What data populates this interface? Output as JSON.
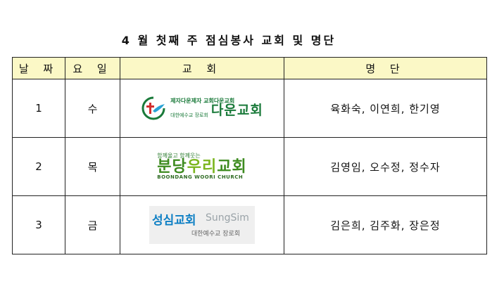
{
  "title": "4 월 첫째 주 점심봉사 교회 및 명단",
  "table": {
    "headers": [
      "날 짜",
      "요 일",
      "교 회",
      "명 단"
    ],
    "rows": [
      {
        "date": "1",
        "day": "수",
        "names": "육화숙, 이연희, 한기영",
        "logo": {
          "line1": "제자다운제자 교회다운교회",
          "line2": "대한예수교 장로회",
          "name": "다운교회",
          "icon": "cross-dove-icon"
        }
      },
      {
        "date": "2",
        "day": "목",
        "names": "김영임, 오수정, 정수자",
        "logo": {
          "tagline": "함께울고 함께웃는",
          "name_a": "분당",
          "name_b": "우리",
          "name_c": "교회",
          "english": "BOONDANG WOORI CHURCH"
        }
      },
      {
        "date": "3",
        "day": "금",
        "names": "김은희, 김주화, 장은정",
        "logo": {
          "name": "성심교회",
          "english": "SungSim",
          "sub": "대한예수교 장로회"
        }
      }
    ]
  },
  "colors": {
    "header_bg": "#fbf8c6",
    "daun_green": "#1a7a3a",
    "woori_green": "#3d8b1f",
    "sungsim_blue": "#0d7fc4"
  }
}
